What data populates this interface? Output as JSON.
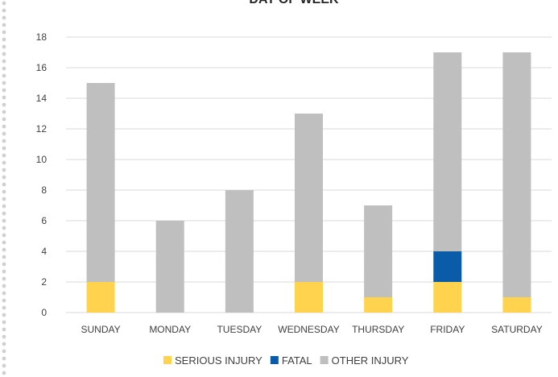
{
  "chart_data": {
    "type": "bar",
    "stacked": true,
    "title": "DAY OF WEEK",
    "xlabel": "",
    "ylabel": "",
    "ylim": [
      0,
      18
    ],
    "yticks": [
      0,
      2,
      4,
      6,
      8,
      10,
      12,
      14,
      16,
      18
    ],
    "grid": true,
    "legend_position": "bottom",
    "categories": [
      "SUNDAY",
      "MONDAY",
      "TUESDAY",
      "WEDNESDAY",
      "THURSDAY",
      "FRIDAY",
      "SATURDAY"
    ],
    "series": [
      {
        "name": "SERIOUS INJURY",
        "color": "#FFD34E",
        "values": [
          2,
          0,
          0,
          2,
          1,
          2,
          1
        ]
      },
      {
        "name": "FATAL",
        "color": "#0A5CA8",
        "values": [
          0,
          0,
          0,
          0,
          0,
          2,
          0
        ]
      },
      {
        "name": "OTHER INJURY",
        "color": "#BFBFBF",
        "values": [
          13,
          6,
          8,
          11,
          6,
          13,
          16
        ]
      }
    ]
  }
}
